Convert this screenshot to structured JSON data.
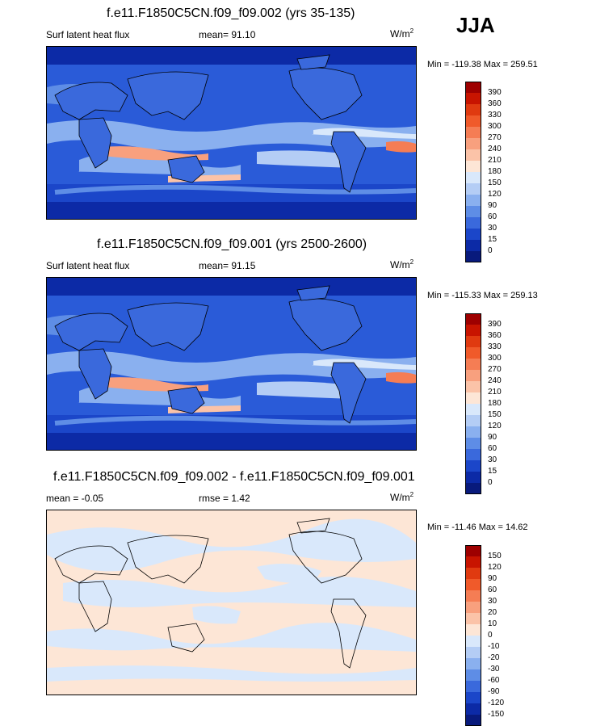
{
  "season": "JJA",
  "panels": [
    {
      "title": "f.e11.F1850C5CN.f09_f09.002 (yrs 35-135)",
      "left_label": "Surf latent heat flux",
      "mid_label": "mean=  91.10",
      "units": "W/m",
      "units_exp": "2",
      "minmax": "Min = -119.38 Max = 259.51",
      "colorbar_labels": [
        "390",
        "360",
        "330",
        "300",
        "270",
        "240",
        "210",
        "180",
        "150",
        "120",
        "90",
        "60",
        "30",
        "15",
        "0"
      ],
      "colorbar_colors": [
        "#9e0000",
        "#c81400",
        "#e03a10",
        "#f05a2a",
        "#f57d54",
        "#f8a07e",
        "#fbc3a8",
        "#fde6d6",
        "#d9e8fb",
        "#b4cdf5",
        "#8ab0ef",
        "#5e8de6",
        "#3a69dc",
        "#1b46c9",
        "#0c2aa6",
        "#081a7c"
      ]
    },
    {
      "title": "f.e11.F1850C5CN.f09_f09.001 (yrs 2500-2600)",
      "left_label": "Surf latent heat flux",
      "mid_label": "mean=  91.15",
      "units": "W/m",
      "units_exp": "2",
      "minmax": "Min = -115.33 Max = 259.13",
      "colorbar_labels": [
        "390",
        "360",
        "330",
        "300",
        "270",
        "240",
        "210",
        "180",
        "150",
        "120",
        "90",
        "60",
        "30",
        "15",
        "0"
      ],
      "colorbar_colors": [
        "#9e0000",
        "#c81400",
        "#e03a10",
        "#f05a2a",
        "#f57d54",
        "#f8a07e",
        "#fbc3a8",
        "#fde6d6",
        "#d9e8fb",
        "#b4cdf5",
        "#8ab0ef",
        "#5e8de6",
        "#3a69dc",
        "#1b46c9",
        "#0c2aa6",
        "#081a7c"
      ]
    },
    {
      "title": "f.e11.F1850C5CN.f09_f09.002 - f.e11.F1850C5CN.f09_f09.001",
      "left_label": "mean =  -0.05",
      "mid_label": "rmse =  1.42",
      "units": "W/m",
      "units_exp": "2",
      "minmax": "Min = -11.46 Max =  14.62",
      "colorbar_labels": [
        "150",
        "120",
        "90",
        "60",
        "30",
        "20",
        "10",
        "0",
        "-10",
        "-20",
        "-30",
        "-60",
        "-90",
        "-120",
        "-150"
      ],
      "colorbar_colors": [
        "#9e0000",
        "#c81400",
        "#e03a10",
        "#f05a2a",
        "#f57d54",
        "#f8a07e",
        "#fbc3a8",
        "#fde6d6",
        "#d9e8fb",
        "#b4cdf5",
        "#8ab0ef",
        "#5e8de6",
        "#3a69dc",
        "#1b46c9",
        "#0c2aa6",
        "#081a7c"
      ]
    }
  ]
}
